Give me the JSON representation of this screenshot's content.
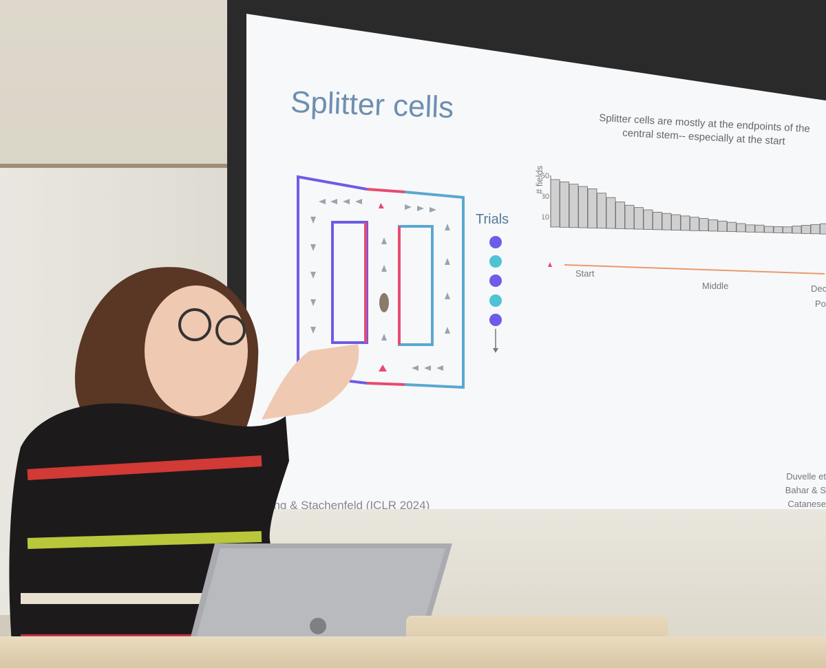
{
  "slide": {
    "title": "Splitter cells",
    "subtitle": "Splitter cells are mostly at the endpoints of the central stem-- especially at the start",
    "trials_label": "Trials",
    "citation": "ang & Stachenfeld (ICLR 2024)",
    "refs": [
      "Duvelle et",
      "Bahar & S",
      "Catanese"
    ],
    "ylabel": "# fields",
    "yticks": [
      "50",
      "30",
      "10"
    ],
    "xticks": [
      "Start",
      "Middle",
      "Deci",
      "Po"
    ]
  },
  "chart_data": {
    "type": "bar",
    "ylabel": "# fields",
    "yticks": [
      10,
      30,
      50
    ],
    "xticks": [
      "Start",
      "Middle"
    ],
    "values": [
      46,
      44,
      42,
      40,
      38,
      34,
      30,
      26,
      23,
      21,
      19,
      17,
      16,
      15,
      14,
      13,
      12,
      11,
      10,
      9,
      8,
      7,
      7,
      6,
      6,
      6,
      7,
      8,
      9,
      10
    ],
    "ylim": [
      0,
      50
    ]
  },
  "colors": {
    "accent_blue": "#5aa8d0",
    "accent_purple": "#6c5ce7",
    "accent_red": "#e84a6f",
    "title_blue": "#6e8fb0"
  }
}
